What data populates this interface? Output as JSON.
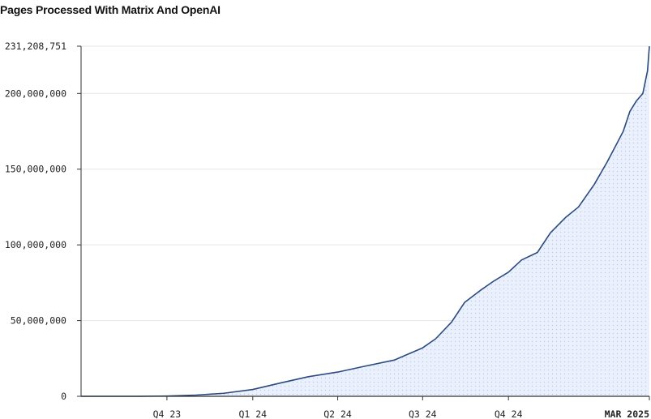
{
  "title": "Pages Processed With Matrix And OpenAI",
  "chart_data": {
    "type": "area",
    "title": "Pages Processed With Matrix And OpenAI",
    "xlabel": "",
    "ylabel": "",
    "ylim": [
      0,
      231208751
    ],
    "y_ticks": [
      {
        "value": 0,
        "label": "0"
      },
      {
        "value": 50000000,
        "label": "50,000,000"
      },
      {
        "value": 100000000,
        "label": "100,000,000"
      },
      {
        "value": 150000000,
        "label": "150,000,000"
      },
      {
        "value": 200000000,
        "label": "200,000,000"
      },
      {
        "value": 231208751,
        "label": "231,208,751"
      }
    ],
    "x_ticks": [
      {
        "date": "2023-10-01",
        "label": "Q4 23",
        "bold": false
      },
      {
        "date": "2024-01-01",
        "label": "Q1 24",
        "bold": false
      },
      {
        "date": "2024-04-01",
        "label": "Q2 24",
        "bold": false
      },
      {
        "date": "2024-07-01",
        "label": "Q3 24",
        "bold": false
      },
      {
        "date": "2024-10-01",
        "label": "Q4 24",
        "bold": false
      },
      {
        "date": "2025-03-01",
        "label": "MAR 2025",
        "bold": true
      }
    ],
    "xlim": [
      "2023-07-01",
      "2025-03-01"
    ],
    "grid": true,
    "colors": {
      "line": "#2b4a80",
      "fill": "#e6eefc",
      "dots": "#b8c8ea",
      "grid": "#e6e6e6",
      "axis": "#333333"
    },
    "series": [
      {
        "x": [
          "2023-07-01",
          "2023-09-01",
          "2023-10-01",
          "2023-11-01",
          "2023-12-01",
          "2024-01-01",
          "2024-02-01",
          "2024-03-01",
          "2024-04-01",
          "2024-05-01",
          "2024-06-01",
          "2024-07-01",
          "2024-07-15",
          "2024-08-01",
          "2024-08-15",
          "2024-09-01",
          "2024-09-15",
          "2024-10-01",
          "2024-10-15",
          "2024-11-01",
          "2024-11-15",
          "2024-12-01",
          "2024-12-15",
          "2025-01-01",
          "2025-01-15",
          "2025-02-01",
          "2025-02-08",
          "2025-02-15",
          "2025-02-22",
          "2025-02-27",
          "2025-03-01"
        ],
        "values": [
          0,
          0,
          200000,
          800000,
          2000000,
          4500000,
          9000000,
          13000000,
          16000000,
          20000000,
          24000000,
          32000000,
          38000000,
          49000000,
          62000000,
          70000000,
          76000000,
          82000000,
          90000000,
          95000000,
          108000000,
          118000000,
          125000000,
          140000000,
          155000000,
          175000000,
          188000000,
          195000000,
          200000000,
          215000000,
          231208751
        ]
      }
    ]
  }
}
